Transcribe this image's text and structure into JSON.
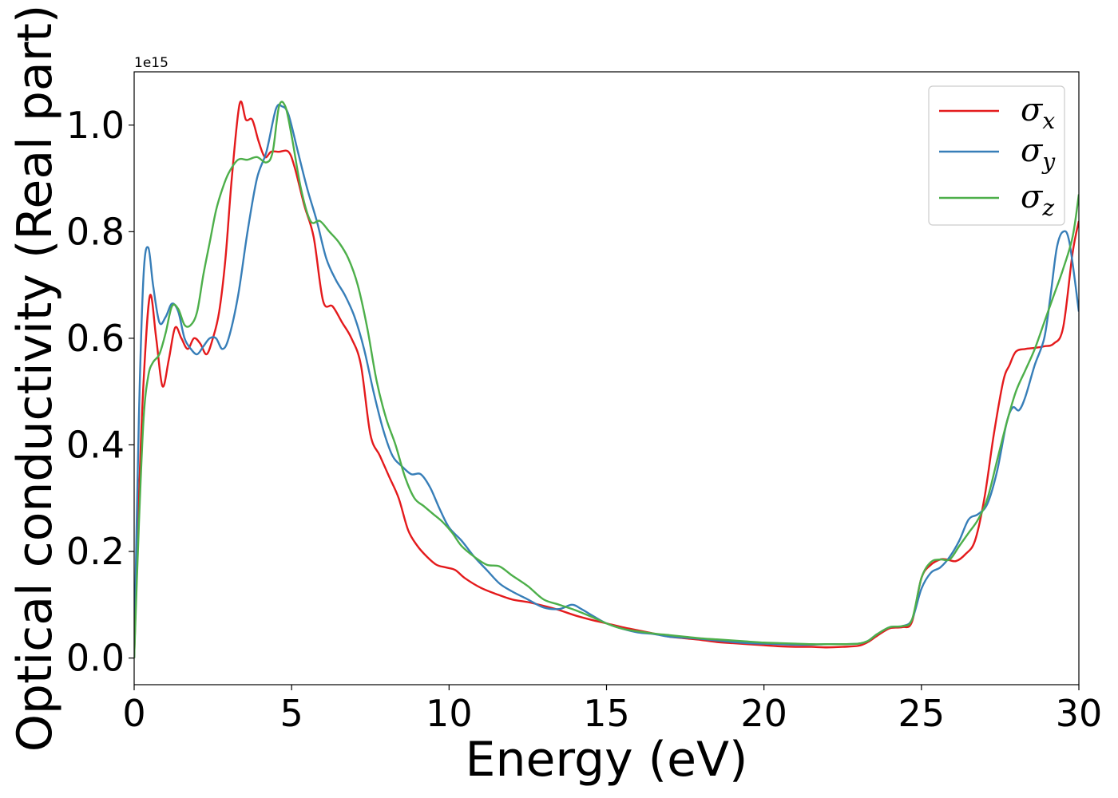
{
  "chart_data": {
    "type": "line",
    "title": "",
    "xlabel": "Energy (eV)",
    "ylabel": "Optical conductivity (Real part)",
    "y_offset_label": "1e15",
    "xlim": [
      0,
      30
    ],
    "ylim": [
      -0.05,
      1.1
    ],
    "xticks": [
      0,
      5,
      10,
      15,
      20,
      25,
      30
    ],
    "yticks": [
      0.0,
      0.2,
      0.4,
      0.6,
      0.8,
      1.0
    ],
    "xtick_labels": [
      "0",
      "5",
      "10",
      "15",
      "20",
      "25",
      "30"
    ],
    "ytick_labels": [
      "0.0",
      "0.2",
      "0.4",
      "0.6",
      "0.8",
      "1.0"
    ],
    "grid": false,
    "legend_position": "top-right",
    "series": [
      {
        "name": "σ",
        "subscript": "x",
        "color": "#e41a1c",
        "x": [
          0,
          0.15,
          0.3,
          0.5,
          0.7,
          0.9,
          1.1,
          1.3,
          1.5,
          1.7,
          1.9,
          2.1,
          2.3,
          2.5,
          2.7,
          2.9,
          3.1,
          3.35,
          3.55,
          3.75,
          3.95,
          4.15,
          4.35,
          4.6,
          4.9,
          5.1,
          5.4,
          5.7,
          6.0,
          6.3,
          6.6,
          6.9,
          7.2,
          7.5,
          7.8,
          8.1,
          8.4,
          8.7,
          9.0,
          9.3,
          9.6,
          9.9,
          10.2,
          10.5,
          11.0,
          11.5,
          12.0,
          12.5,
          13.0,
          13.5,
          14.0,
          14.5,
          15.0,
          15.5,
          16.0,
          16.5,
          17.0,
          17.5,
          18.0,
          18.5,
          19.0,
          19.5,
          20.0,
          20.5,
          21.0,
          21.5,
          22.0,
          22.5,
          23.0,
          23.3,
          23.6,
          24.0,
          24.4,
          24.7,
          25.0,
          25.3,
          25.6,
          25.8,
          26.1,
          26.4,
          26.7,
          27.0,
          27.3,
          27.6,
          27.8,
          28.0,
          28.3,
          28.6,
          28.9,
          29.2,
          29.5,
          29.8,
          30.0
        ],
        "values": [
          0.0,
          0.3,
          0.52,
          0.68,
          0.6,
          0.51,
          0.56,
          0.62,
          0.6,
          0.58,
          0.6,
          0.59,
          0.57,
          0.6,
          0.65,
          0.75,
          0.9,
          1.04,
          1.01,
          1.01,
          0.97,
          0.94,
          0.95,
          0.95,
          0.95,
          0.92,
          0.85,
          0.79,
          0.67,
          0.66,
          0.63,
          0.6,
          0.55,
          0.42,
          0.38,
          0.34,
          0.3,
          0.24,
          0.21,
          0.19,
          0.175,
          0.17,
          0.165,
          0.15,
          0.132,
          0.12,
          0.11,
          0.105,
          0.098,
          0.09,
          0.08,
          0.072,
          0.065,
          0.058,
          0.052,
          0.046,
          0.04,
          0.037,
          0.034,
          0.03,
          0.028,
          0.026,
          0.024,
          0.022,
          0.021,
          0.021,
          0.02,
          0.021,
          0.023,
          0.03,
          0.042,
          0.056,
          0.058,
          0.068,
          0.15,
          0.175,
          0.185,
          0.185,
          0.182,
          0.195,
          0.22,
          0.3,
          0.42,
          0.52,
          0.55,
          0.575,
          0.58,
          0.582,
          0.585,
          0.59,
          0.62,
          0.76,
          0.82
        ]
      },
      {
        "name": "σ",
        "subscript": "y",
        "color": "#377eb8",
        "x": [
          0,
          0.15,
          0.3,
          0.45,
          0.6,
          0.8,
          1.0,
          1.2,
          1.4,
          1.6,
          1.8,
          2.0,
          2.2,
          2.4,
          2.6,
          2.8,
          3.0,
          3.3,
          3.6,
          3.9,
          4.2,
          4.5,
          4.7,
          4.9,
          5.2,
          5.5,
          5.8,
          6.1,
          6.4,
          6.7,
          7.0,
          7.3,
          7.6,
          7.9,
          8.2,
          8.5,
          8.8,
          9.1,
          9.4,
          9.7,
          10.0,
          10.4,
          10.8,
          11.2,
          11.6,
          12.0,
          12.5,
          13.0,
          13.5,
          13.9,
          14.2,
          14.6,
          15.0,
          15.5,
          16.0,
          16.5,
          17.0,
          17.5,
          18.0,
          18.5,
          19.0,
          19.5,
          20.0,
          20.5,
          21.0,
          21.5,
          22.0,
          22.5,
          23.0,
          23.3,
          23.6,
          24.0,
          24.4,
          24.7,
          25.0,
          25.3,
          25.6,
          25.9,
          26.2,
          26.5,
          26.8,
          27.1,
          27.4,
          27.7,
          27.9,
          28.1,
          28.3,
          28.6,
          28.9,
          29.1,
          29.3,
          29.5,
          29.7,
          30.0
        ],
        "values": [
          0.0,
          0.45,
          0.72,
          0.77,
          0.7,
          0.63,
          0.64,
          0.665,
          0.65,
          0.6,
          0.58,
          0.57,
          0.585,
          0.6,
          0.6,
          0.58,
          0.6,
          0.68,
          0.8,
          0.9,
          0.95,
          1.03,
          1.035,
          1.02,
          0.95,
          0.88,
          0.82,
          0.75,
          0.71,
          0.68,
          0.64,
          0.58,
          0.5,
          0.43,
          0.38,
          0.36,
          0.345,
          0.345,
          0.32,
          0.28,
          0.245,
          0.22,
          0.19,
          0.165,
          0.14,
          0.125,
          0.11,
          0.095,
          0.092,
          0.1,
          0.092,
          0.078,
          0.065,
          0.055,
          0.048,
          0.045,
          0.04,
          0.038,
          0.036,
          0.033,
          0.03,
          0.028,
          0.027,
          0.026,
          0.025,
          0.025,
          0.026,
          0.026,
          0.027,
          0.032,
          0.045,
          0.058,
          0.06,
          0.072,
          0.13,
          0.16,
          0.17,
          0.19,
          0.22,
          0.26,
          0.27,
          0.29,
          0.35,
          0.44,
          0.47,
          0.465,
          0.49,
          0.55,
          0.6,
          0.68,
          0.77,
          0.8,
          0.78,
          0.65
        ]
      },
      {
        "name": "σ",
        "subscript": "z",
        "color": "#4daf4a",
        "x": [
          0,
          0.15,
          0.3,
          0.45,
          0.6,
          0.8,
          1.0,
          1.2,
          1.4,
          1.6,
          1.8,
          2.0,
          2.2,
          2.4,
          2.6,
          2.8,
          3.0,
          3.3,
          3.6,
          3.9,
          4.2,
          4.4,
          4.6,
          4.8,
          5.0,
          5.3,
          5.6,
          5.9,
          6.2,
          6.5,
          6.8,
          7.1,
          7.4,
          7.7,
          8.0,
          8.3,
          8.6,
          8.9,
          9.2,
          9.5,
          9.8,
          10.1,
          10.4,
          10.8,
          11.2,
          11.6,
          12.0,
          12.5,
          13.0,
          13.5,
          14.0,
          14.5,
          15.0,
          15.5,
          16.0,
          16.5,
          17.0,
          17.5,
          18.0,
          18.5,
          19.0,
          19.5,
          20.0,
          20.5,
          21.0,
          21.5,
          22.0,
          22.5,
          23.0,
          23.3,
          23.6,
          24.0,
          24.4,
          24.7,
          25.0,
          25.3,
          25.6,
          25.9,
          26.2,
          26.5,
          26.8,
          27.1,
          27.4,
          27.7,
          28.0,
          28.3,
          28.6,
          28.9,
          29.2,
          29.5,
          29.8,
          30.0
        ],
        "values": [
          0.0,
          0.25,
          0.45,
          0.53,
          0.555,
          0.57,
          0.61,
          0.66,
          0.655,
          0.625,
          0.625,
          0.65,
          0.72,
          0.78,
          0.84,
          0.88,
          0.91,
          0.935,
          0.935,
          0.94,
          0.93,
          0.95,
          1.035,
          1.035,
          0.98,
          0.88,
          0.82,
          0.82,
          0.8,
          0.78,
          0.75,
          0.7,
          0.62,
          0.52,
          0.45,
          0.4,
          0.34,
          0.3,
          0.285,
          0.27,
          0.255,
          0.235,
          0.21,
          0.19,
          0.175,
          0.172,
          0.155,
          0.135,
          0.11,
          0.1,
          0.09,
          0.078,
          0.065,
          0.055,
          0.05,
          0.046,
          0.043,
          0.04,
          0.037,
          0.035,
          0.033,
          0.031,
          0.029,
          0.028,
          0.027,
          0.026,
          0.026,
          0.026,
          0.027,
          0.032,
          0.045,
          0.058,
          0.06,
          0.072,
          0.15,
          0.18,
          0.185,
          0.185,
          0.21,
          0.235,
          0.26,
          0.3,
          0.37,
          0.44,
          0.5,
          0.54,
          0.58,
          0.63,
          0.68,
          0.73,
          0.79,
          0.87
        ]
      }
    ]
  }
}
